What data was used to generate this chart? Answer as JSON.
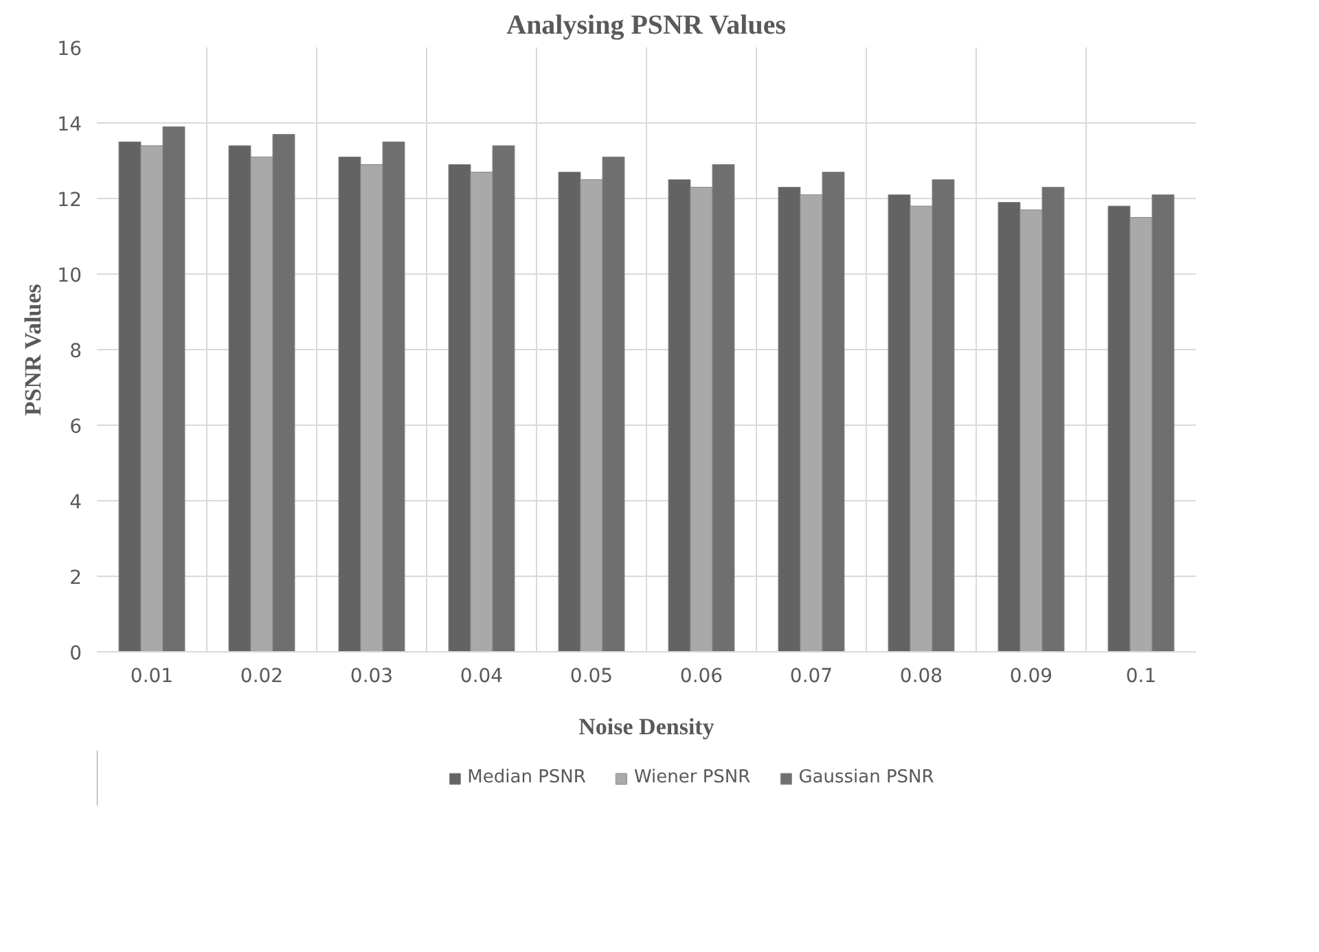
{
  "chart_data": {
    "type": "bar",
    "title": "Analysing PSNR Values",
    "xlabel": "Noise Density",
    "ylabel": "PSNR Values",
    "categories": [
      "0.01",
      "0.02",
      "0.03",
      "0.04",
      "0.05",
      "0.06",
      "0.07",
      "0.08",
      "0.09",
      "0.1"
    ],
    "series": [
      {
        "name": "Median PSNR",
        "color": "#636363",
        "values": [
          13.5,
          13.4,
          13.1,
          12.9,
          12.7,
          12.5,
          12.3,
          12.1,
          11.9,
          11.8
        ]
      },
      {
        "name": "Wiener PSNR",
        "color": "#a9a9a9",
        "values": [
          13.4,
          13.1,
          12.9,
          12.7,
          12.5,
          12.3,
          12.1,
          11.8,
          11.7,
          11.5
        ]
      },
      {
        "name": "Gaussian PSNR",
        "color": "#6f6f6f",
        "values": [
          13.9,
          13.7,
          13.5,
          13.4,
          13.1,
          12.9,
          12.7,
          12.5,
          12.3,
          12.1
        ]
      }
    ],
    "ylim": [
      0,
      16
    ],
    "yticks": [
      0,
      2,
      4,
      6,
      8,
      10,
      12,
      14,
      16
    ],
    "grid": true,
    "legend": "bottom"
  }
}
